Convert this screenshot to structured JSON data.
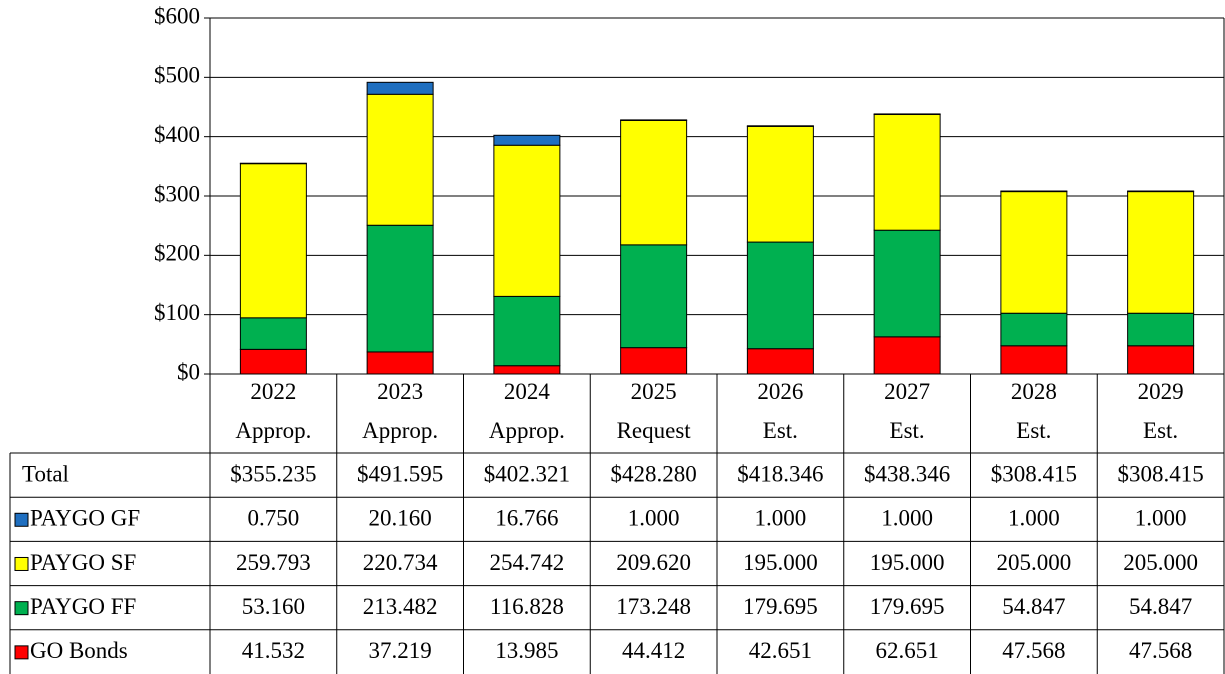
{
  "chart_data": {
    "type": "stacked_bar",
    "categories": [
      "2022\nApprop.",
      "2023\nApprop.",
      "2024\nApprop.",
      "2025\nRequest",
      "2026\nEst.",
      "2027\nEst.",
      "2028\nEst.",
      "2029\nEst."
    ],
    "total": {
      "name": "Total",
      "values": [
        355.235,
        491.595,
        402.321,
        428.28,
        418.346,
        438.346,
        308.415,
        308.415
      ],
      "value_labels": [
        "$355.235",
        "$491.595",
        "$402.321",
        "$428.280",
        "$418.346",
        "$438.346",
        "$308.415",
        "$308.415"
      ]
    },
    "series": [
      {
        "name": "PAYGO GF",
        "color": "#1f6fc0",
        "values": [
          0.75,
          20.16,
          16.766,
          1,
          1,
          1,
          1,
          1
        ],
        "value_labels": [
          "0.750",
          "20.160",
          "16.766",
          "1.000",
          "1.000",
          "1.000",
          "1.000",
          "1.000"
        ]
      },
      {
        "name": "PAYGO SF",
        "color": "#ffff00",
        "values": [
          259.793,
          220.734,
          254.742,
          209.62,
          195,
          195,
          205,
          205
        ],
        "value_labels": [
          "259.793",
          "220.734",
          "254.742",
          "209.620",
          "195.000",
          "195.000",
          "205.000",
          "205.000"
        ]
      },
      {
        "name": "PAYGO FF",
        "color": "#00b050",
        "values": [
          53.16,
          213.482,
          116.828,
          173.248,
          179.695,
          179.695,
          54.847,
          54.847
        ],
        "value_labels": [
          "53.160",
          "213.482",
          "116.828",
          "173.248",
          "179.695",
          "179.695",
          "54.847",
          "54.847"
        ]
      },
      {
        "name": "GO Bonds",
        "color": "#ff0000",
        "values": [
          41.532,
          37.219,
          13.985,
          44.412,
          42.651,
          62.651,
          47.568,
          47.568
        ],
        "value_labels": [
          "41.532",
          "37.219",
          "13.985",
          "44.412",
          "42.651",
          "62.651",
          "47.568",
          "47.568"
        ]
      }
    ],
    "ylim": [
      0,
      600
    ],
    "yticks": [
      {
        "value": 0,
        "label": "$0"
      },
      {
        "value": 100,
        "label": "$100"
      },
      {
        "value": 200,
        "label": "$200"
      },
      {
        "value": 300,
        "label": "$300"
      },
      {
        "value": 400,
        "label": "$400"
      },
      {
        "value": 500,
        "label": "$500"
      },
      {
        "value": 600,
        "label": "$600"
      }
    ],
    "grid": true
  }
}
